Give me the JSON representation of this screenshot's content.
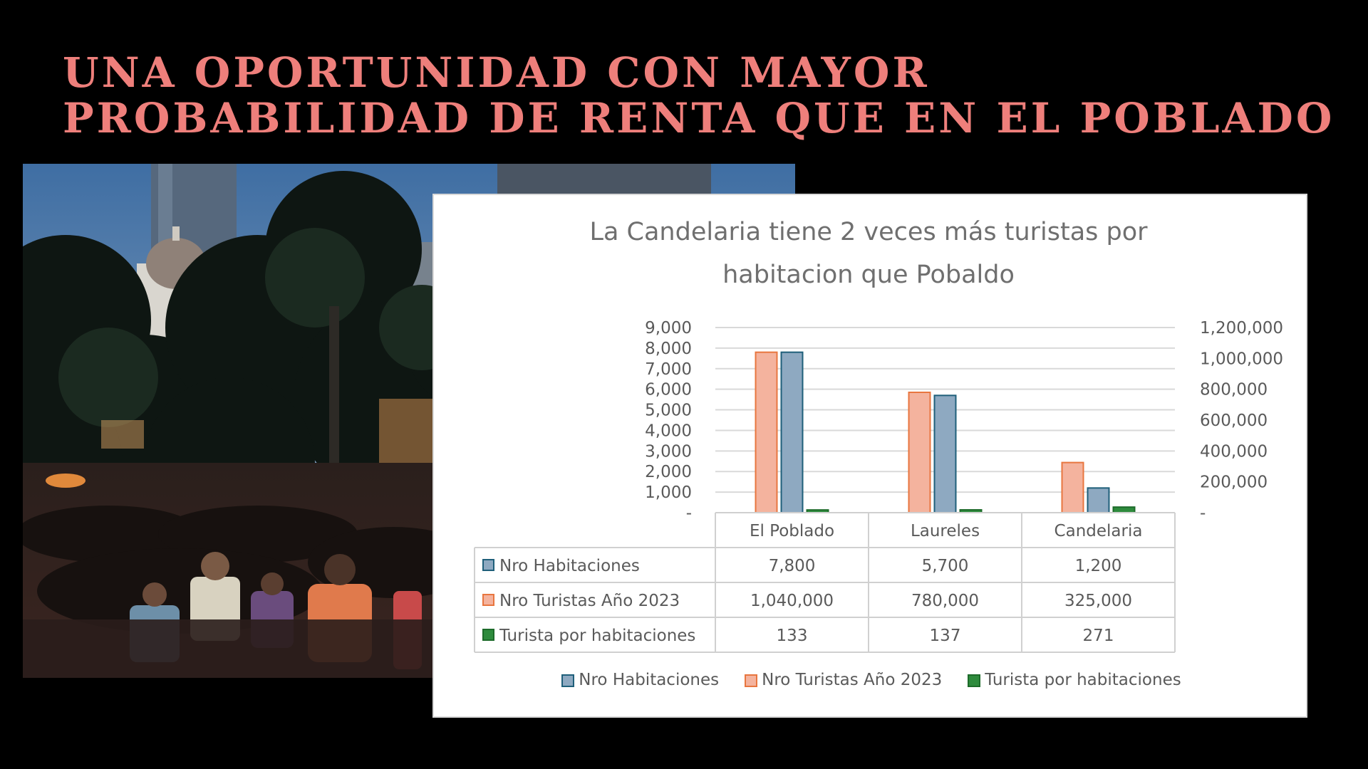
{
  "headline": {
    "line1": "UNA OPORTUNIDAD CON MAYOR",
    "line2": "PROBABILIDAD DE RENTA QUE EN EL POBLADO"
  },
  "colors": {
    "background": "#000000",
    "headline": "#ee7f7b",
    "series_habitaciones_fill": "#8ea9c1",
    "series_habitaciones_border": "#1f5f7a",
    "series_turistas_fill": "#f4b39e",
    "series_turistas_border": "#e8763f",
    "series_turista_hab_fill": "#2e8b3d",
    "series_turista_hab_border": "#1d6b2a"
  },
  "chart_data": {
    "type": "bar",
    "title": "La Candelaria tiene 2 veces más turistas por habitacion que Pobaldo",
    "categories": [
      "El Poblado",
      "Laureles",
      "Candelaria"
    ],
    "series": [
      {
        "name": "Nro Habitaciones",
        "values": [
          7800,
          5700,
          1200
        ],
        "axis": "left",
        "labels": [
          "7,800",
          "5,700",
          "1,200"
        ]
      },
      {
        "name": "Nro Turistas Año 2023",
        "values": [
          1040000,
          780000,
          325000
        ],
        "axis": "right",
        "labels": [
          "1,040,000",
          "780,000",
          "325,000"
        ]
      },
      {
        "name": "Turista por habitaciones",
        "values": [
          133,
          137,
          271
        ],
        "axis": "left",
        "labels": [
          "133",
          "137",
          "271"
        ]
      }
    ],
    "bar_draw_order": [
      "Nro Turistas Año 2023",
      "Nro Habitaciones",
      "Turista por habitaciones"
    ],
    "y_left": {
      "min": 0,
      "max": 9000,
      "ticks": [
        "-",
        "1,000",
        "2,000",
        "3,000",
        "4,000",
        "5,000",
        "6,000",
        "7,000",
        "8,000",
        "9,000"
      ]
    },
    "y_right": {
      "min": 0,
      "max": 1200000,
      "ticks": [
        "-",
        "200,000",
        "400,000",
        "600,000",
        "800,000",
        "1,000,000",
        "1,200,000"
      ]
    },
    "grid": true,
    "data_table": true,
    "legend_position": "bottom"
  }
}
